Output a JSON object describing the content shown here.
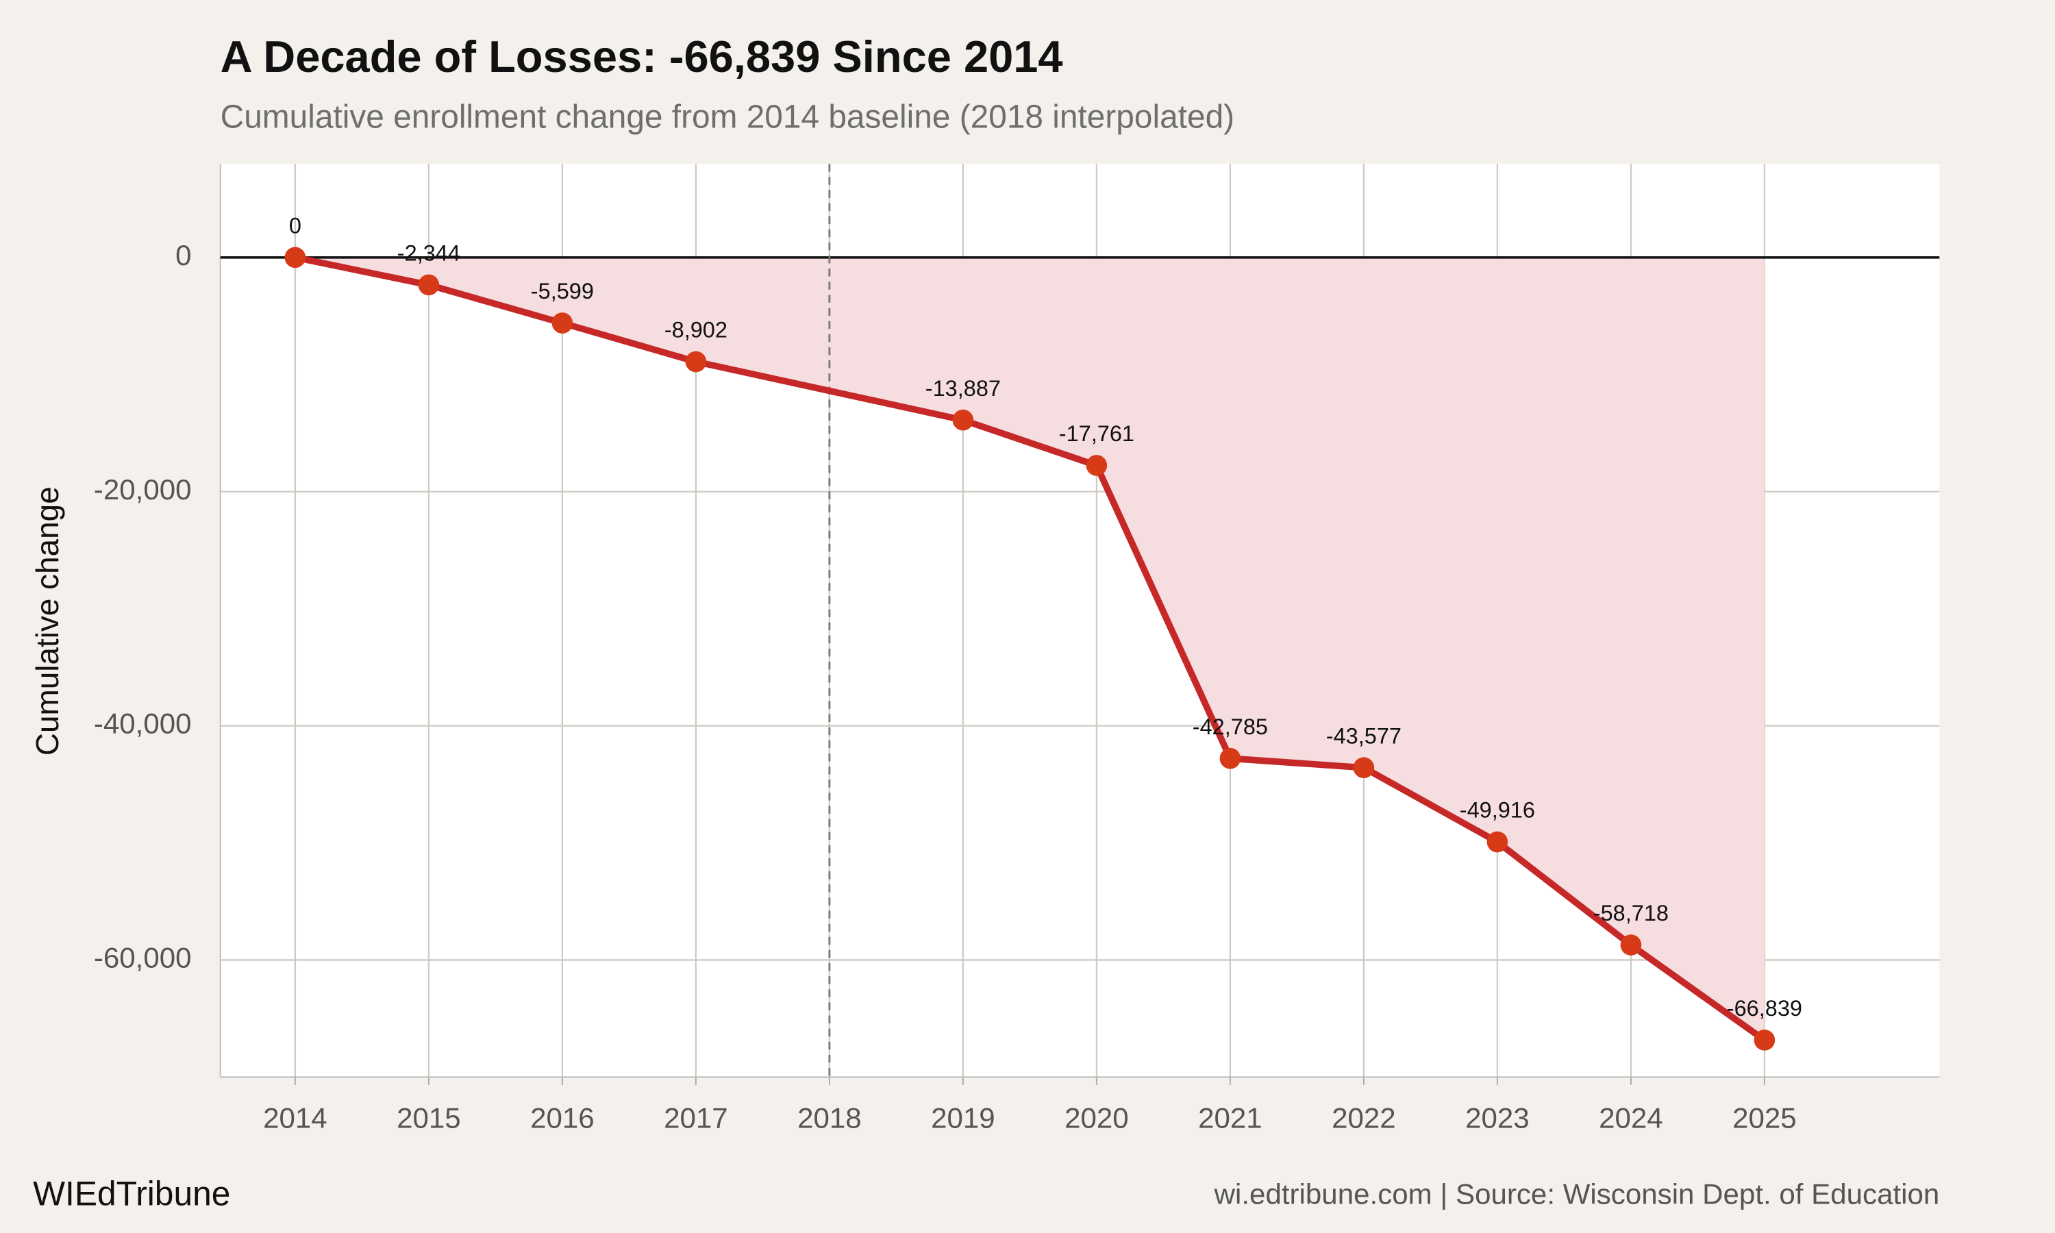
{
  "chart_data": {
    "type": "line",
    "title": "A Decade of Losses: -66,839 Since 2014",
    "subtitle": "Cumulative enrollment change from 2014 baseline (2018 interpolated)",
    "y_label": "Cumulative change",
    "x": [
      2014,
      2015,
      2016,
      2017,
      2019,
      2020,
      2021,
      2022,
      2023,
      2024,
      2025
    ],
    "series": [
      {
        "name": "Cumulative change",
        "color": "#c62828",
        "marker_color": "#d63a16",
        "area_color": "#f6dde0",
        "values": [
          0,
          -2344,
          -5599,
          -8902,
          -13887,
          -17761,
          -42785,
          -43577,
          -49916,
          -58718,
          -66839
        ],
        "value_labels": [
          "0",
          "-2,344",
          "-5,599",
          "-8,902",
          "-13,887",
          "-17,761",
          "-42,785",
          "-43,577",
          "-49,916",
          "-58,718",
          "-66,839"
        ]
      }
    ],
    "xlim": [
      2013.44,
      2026.31
    ],
    "xticks": [
      2014,
      2015,
      2016,
      2017,
      2018,
      2019,
      2020,
      2021,
      2022,
      2023,
      2024,
      2025
    ],
    "ylim": [
      -70000,
      8000
    ],
    "yticks": [
      0,
      {
        "value": -20000,
        "label": "-20,000"
      },
      {
        "value": -40000,
        "label": "-40,000"
      },
      {
        "value": -60000,
        "label": "-60,000"
      }
    ],
    "vline": 2018,
    "grid": true,
    "brand": "WIEdTribune",
    "source": "wi.edtribune.com | Source: Wisconsin Dept. of Education"
  }
}
